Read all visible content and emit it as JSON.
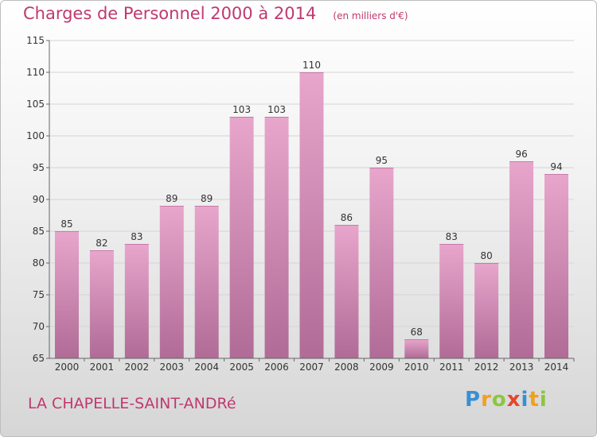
{
  "chart_data": {
    "type": "bar",
    "title": "Charges de Personnel 2000 à 2014",
    "unit_note": "(en milliers d'€)",
    "xlabel": "",
    "ylabel": "",
    "categories": [
      "2000",
      "2001",
      "2002",
      "2003",
      "2004",
      "2005",
      "2006",
      "2007",
      "2008",
      "2009",
      "2010",
      "2011",
      "2012",
      "2013",
      "2014"
    ],
    "values": [
      85,
      82,
      83,
      89,
      89,
      103,
      103,
      110,
      86,
      95,
      68,
      83,
      80,
      96,
      94
    ],
    "ylim": [
      65,
      115
    ],
    "yticks": [
      65,
      70,
      75,
      80,
      85,
      90,
      95,
      100,
      105,
      110,
      115
    ],
    "grid": "horizontal",
    "bar_color": "#d889b3",
    "label_color": "#333333"
  },
  "place": "LA CHAPELLE-SAINT-ANDRé",
  "brand": {
    "letters": [
      "P",
      "r",
      "o",
      "x",
      "i",
      "t",
      "i"
    ],
    "colors": [
      "#3a8fd4",
      "#f0a01e",
      "#8cc63e",
      "#e8452c",
      "#3a8fd4",
      "#f0a01e",
      "#8cc63e"
    ]
  }
}
